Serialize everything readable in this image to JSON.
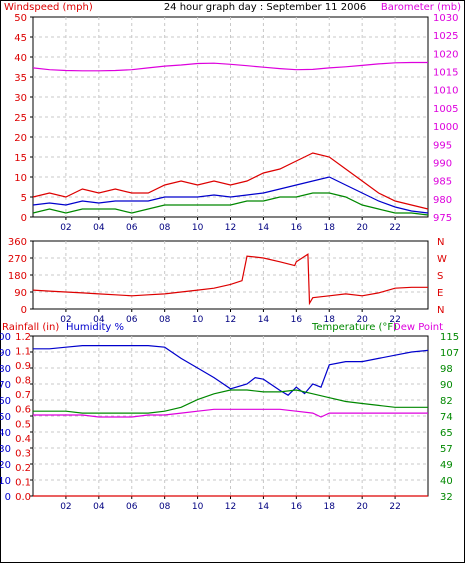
{
  "header": {
    "left_title": "Windspeed (mph)",
    "center_title": "24 hour graph day : September 11 2006",
    "right_title": "Barometer (mb)"
  },
  "colors": {
    "red": "#dd0000",
    "blue": "#0000cc",
    "green": "#008800",
    "magenta": "#dd00dd",
    "grid": "#c8c8c8",
    "frame": "#000000"
  },
  "chart_data": [
    {
      "type": "line",
      "title": "24 hour graph day : September 11 2006",
      "x_ticks": [
        "02",
        "04",
        "06",
        "08",
        "10",
        "12",
        "14",
        "16",
        "18",
        "20",
        "22"
      ],
      "xlim": [
        0,
        24
      ],
      "y_left": {
        "label": "Windspeed (mph)",
        "lim": [
          0,
          50
        ],
        "ticks": [
          "0",
          "5",
          "10",
          "15",
          "20",
          "25",
          "30",
          "35",
          "40",
          "45",
          "50"
        ]
      },
      "y_right": {
        "label": "Barometer (mb)",
        "lim": [
          975,
          1030
        ],
        "ticks": [
          "975",
          "980",
          "985",
          "990",
          "995",
          "1000",
          "1005",
          "1010",
          "1015",
          "1020",
          "1025",
          "1030"
        ]
      },
      "grid": true,
      "series": [
        {
          "axis": "right",
          "color": "#dd00dd",
          "x": [
            0,
            1,
            2,
            3,
            4,
            5,
            6,
            7,
            8,
            9,
            10,
            11,
            12,
            13,
            14,
            15,
            16,
            17,
            18,
            19,
            20,
            21,
            22,
            23,
            24
          ],
          "values": [
            1016,
            1015.5,
            1015.3,
            1015.2,
            1015.2,
            1015.3,
            1015.5,
            1016,
            1016.5,
            1016.8,
            1017.2,
            1017.3,
            1017,
            1016.6,
            1016.2,
            1015.8,
            1015.5,
            1015.6,
            1016,
            1016.3,
            1016.7,
            1017.1,
            1017.4,
            1017.5,
            1017.5
          ]
        },
        {
          "axis": "left",
          "color": "#dd0000",
          "x": [
            0,
            1,
            2,
            3,
            4,
            5,
            6,
            7,
            8,
            9,
            10,
            11,
            12,
            13,
            14,
            15,
            16,
            17,
            18,
            19,
            20,
            21,
            22,
            23,
            24
          ],
          "values": [
            5,
            6,
            5,
            7,
            6,
            7,
            6,
            6,
            8,
            9,
            8,
            9,
            8,
            9,
            11,
            12,
            14,
            16,
            15,
            12,
            9,
            6,
            4,
            3,
            2
          ]
        },
        {
          "axis": "left",
          "color": "#0000cc",
          "x": [
            0,
            1,
            2,
            3,
            4,
            5,
            6,
            7,
            8,
            9,
            10,
            11,
            12,
            13,
            14,
            15,
            16,
            17,
            18,
            19,
            20,
            21,
            22,
            23,
            24
          ],
          "values": [
            3,
            3.5,
            3,
            4,
            3.5,
            4,
            4,
            4,
            5,
            5,
            5,
            5.5,
            5,
            5.5,
            6,
            7,
            8,
            9,
            10,
            8,
            6,
            4,
            2.5,
            1.5,
            1
          ]
        },
        {
          "axis": "left",
          "color": "#008800",
          "x": [
            0,
            1,
            2,
            3,
            4,
            5,
            6,
            7,
            8,
            9,
            10,
            11,
            12,
            13,
            14,
            15,
            16,
            17,
            18,
            19,
            20,
            21,
            22,
            23,
            24
          ],
          "values": [
            1,
            2,
            1,
            2,
            2,
            2,
            1,
            2,
            3,
            3,
            3,
            3,
            3,
            4,
            4,
            5,
            5,
            6,
            6,
            5,
            3,
            2,
            1,
            1,
            0.5
          ]
        }
      ]
    },
    {
      "type": "line",
      "x_ticks": [
        "02",
        "04",
        "06",
        "08",
        "10",
        "12",
        "14",
        "16",
        "18",
        "20",
        "22"
      ],
      "xlim": [
        0,
        24
      ],
      "y_left": {
        "lim": [
          0,
          360
        ],
        "ticks": [
          "0",
          "90",
          "180",
          "270",
          "360"
        ]
      },
      "y_right": {
        "ticks": [
          "N",
          "W",
          "S",
          "E",
          "N"
        ]
      },
      "grid": true,
      "series": [
        {
          "axis": "left",
          "color": "#dd0000",
          "x": [
            0,
            1,
            2,
            3,
            4,
            5,
            6,
            7,
            8,
            9,
            10,
            11,
            12,
            12.7,
            13,
            14,
            15,
            15.9,
            16,
            16.7,
            16.8,
            17,
            18,
            19,
            20,
            21,
            22,
            23,
            24
          ],
          "values": [
            100,
            95,
            90,
            85,
            80,
            75,
            70,
            75,
            80,
            90,
            100,
            110,
            130,
            150,
            280,
            270,
            250,
            230,
            250,
            290,
            30,
            60,
            70,
            80,
            70,
            85,
            110,
            115,
            115
          ]
        }
      ]
    },
    {
      "type": "line",
      "x_ticks": [
        "02",
        "04",
        "06",
        "08",
        "10",
        "12",
        "14",
        "16",
        "18",
        "20",
        "22"
      ],
      "xlim": [
        0,
        24
      ],
      "y_left_humidity": {
        "label": "Humidity %",
        "lim": [
          0,
          100
        ],
        "ticks": [
          "0",
          "10",
          "20",
          "30",
          "40",
          "50",
          "60",
          "70",
          "80",
          "90",
          "100"
        ]
      },
      "y_left_rain": {
        "label": "Rainfall (in)",
        "lim": [
          0,
          1.2
        ],
        "ticks": [
          "0.0",
          "0.1",
          "0.2",
          "0.3",
          "0.4",
          "0.5",
          "0.6",
          "0.7",
          "0.8",
          "0.9",
          "1.1",
          "1.2"
        ]
      },
      "y_right": {
        "label": "Temperature (°F)",
        "lim": [
          32,
          115
        ],
        "ticks": [
          "32",
          "40",
          "49",
          "57",
          "65",
          "74",
          "82",
          "90",
          "98",
          "107",
          "115"
        ]
      },
      "dew_point_label": "Dew Point",
      "grid": true,
      "series": [
        {
          "axis": "humidity",
          "color": "#0000cc",
          "x": [
            0,
            1,
            2,
            3,
            4,
            5,
            6,
            7,
            8,
            9,
            10,
            11,
            12,
            13,
            13.5,
            14,
            15,
            15.5,
            16,
            16.5,
            17,
            17.5,
            18,
            19,
            20,
            21,
            22,
            23,
            24
          ],
          "values": [
            92,
            92,
            93,
            94,
            94,
            94,
            94,
            94,
            93,
            86,
            80,
            74,
            67,
            70,
            74,
            73,
            66,
            63,
            68,
            64,
            70,
            68,
            82,
            84,
            84,
            86,
            88,
            90,
            91
          ]
        },
        {
          "axis": "temp",
          "color": "#008800",
          "x": [
            0,
            1,
            2,
            3,
            4,
            5,
            6,
            7,
            8,
            9,
            10,
            11,
            12,
            13,
            14,
            15,
            16,
            17,
            18,
            19,
            20,
            21,
            22,
            23,
            24
          ],
          "values": [
            76,
            76,
            76,
            75,
            75,
            75,
            75,
            75,
            76,
            78,
            82,
            85,
            87,
            87,
            86,
            86,
            87,
            85,
            83,
            81,
            80,
            79,
            78,
            78,
            78
          ]
        },
        {
          "axis": "temp",
          "color": "#dd00dd",
          "x": [
            0,
            1,
            2,
            3,
            4,
            5,
            6,
            7,
            8,
            9,
            10,
            11,
            12,
            13,
            14,
            15,
            16,
            17,
            17.5,
            18,
            19,
            20,
            21,
            22,
            23,
            24
          ],
          "values": [
            74,
            74,
            74,
            74,
            73,
            73,
            73,
            74,
            74,
            75,
            76,
            77,
            77,
            77,
            77,
            77,
            76,
            75,
            73,
            75,
            75,
            75,
            75,
            75,
            75,
            75
          ]
        },
        {
          "axis": "rain",
          "color": "#dd0000",
          "x": [
            0,
            24
          ],
          "values": [
            0,
            0
          ]
        }
      ]
    }
  ]
}
